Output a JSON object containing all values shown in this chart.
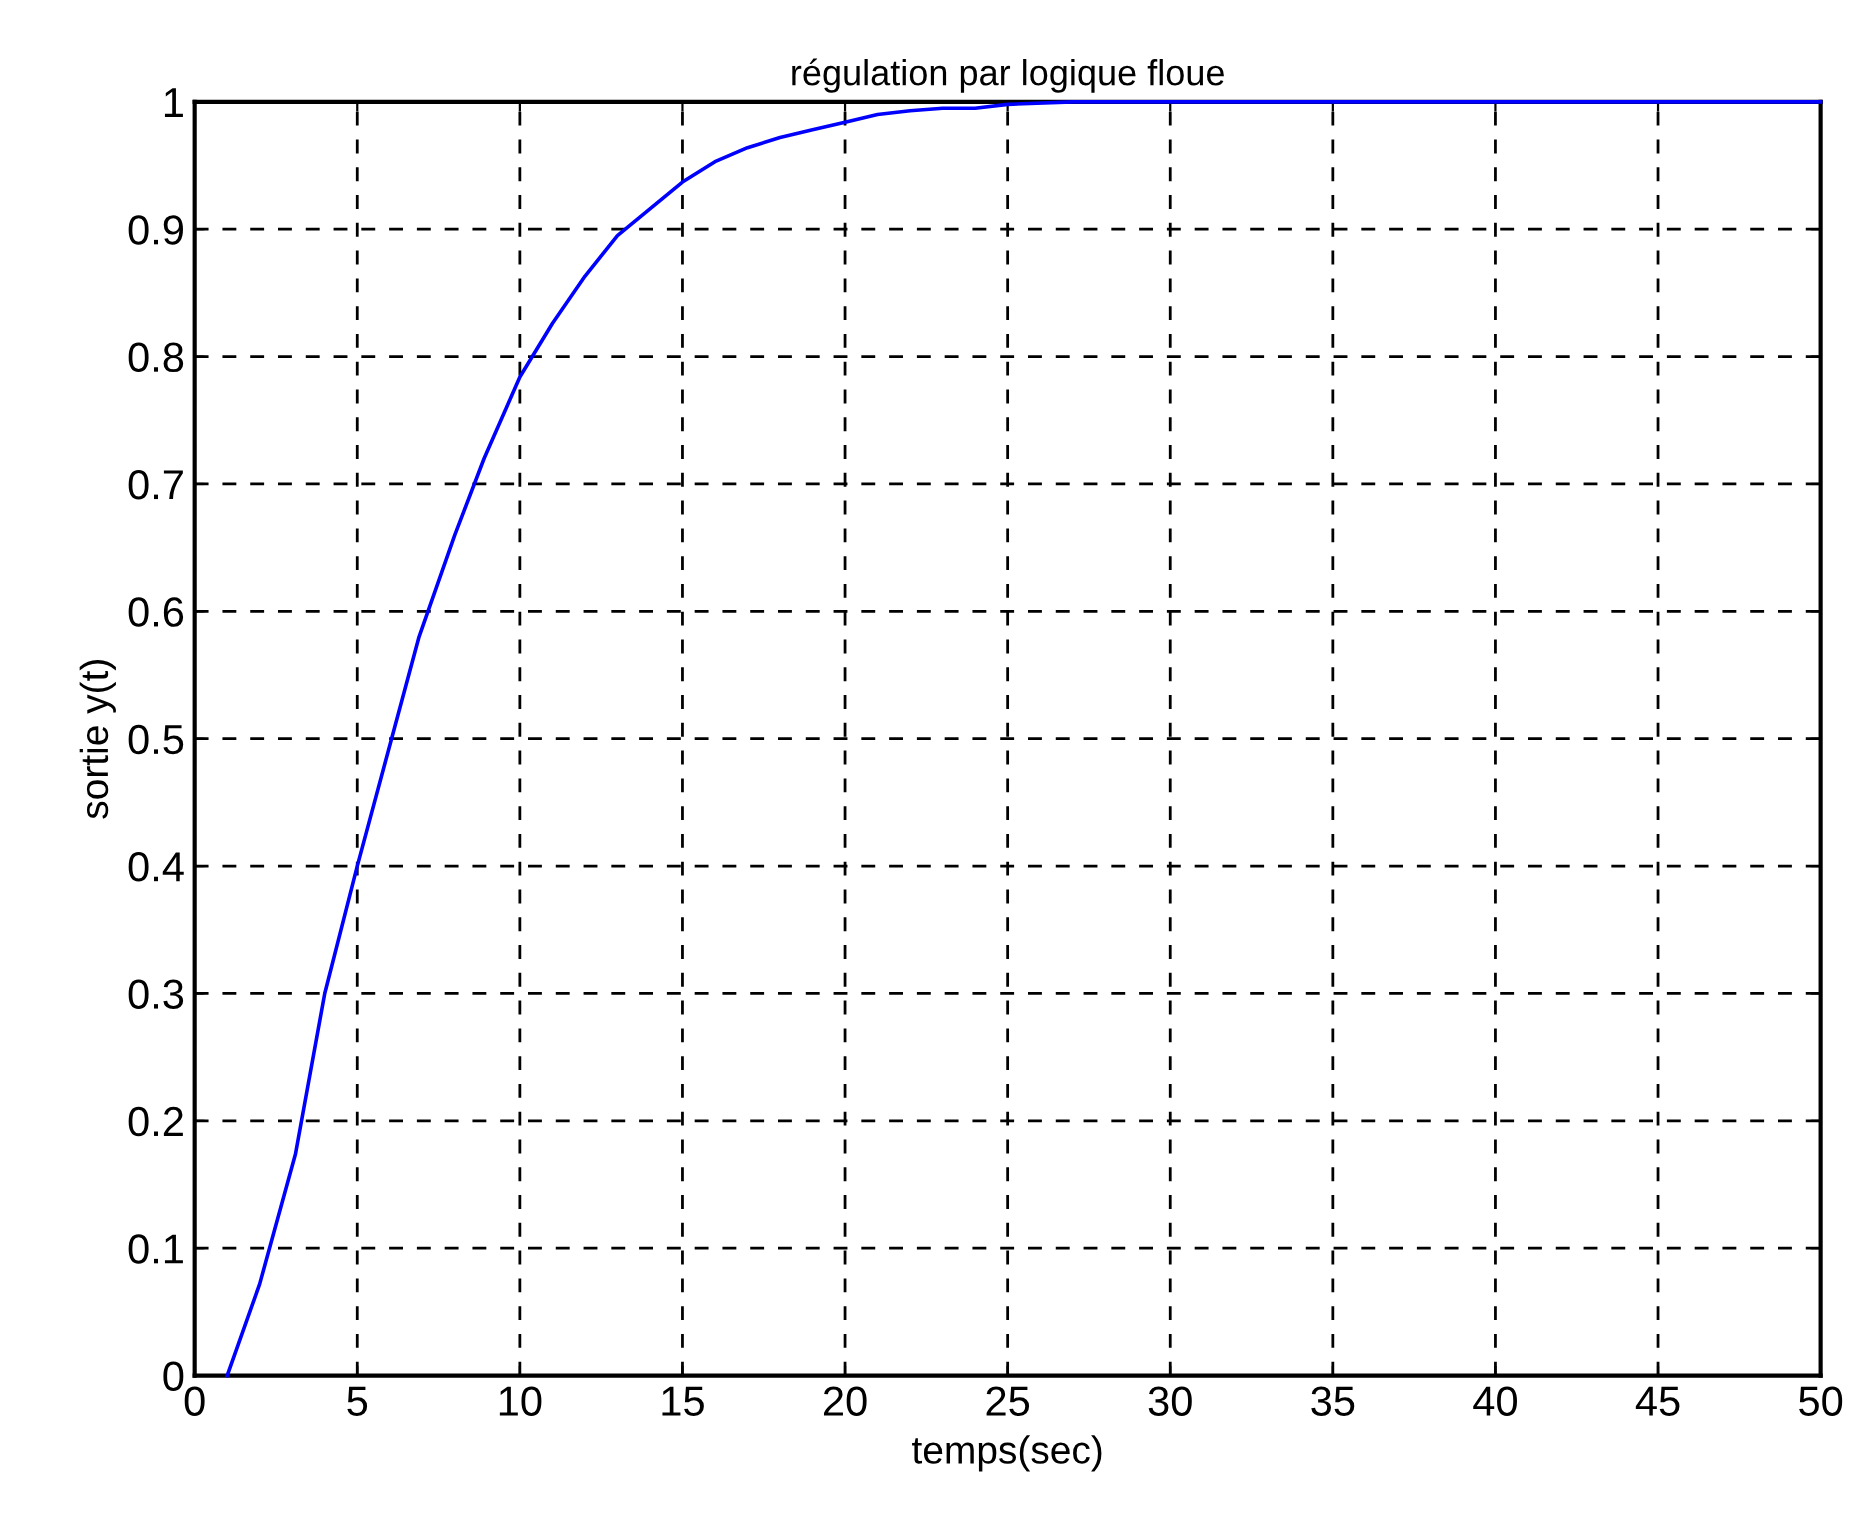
{
  "chart_data": {
    "type": "line",
    "title": "régulation par logique floue",
    "xlabel": "temps(sec)",
    "ylabel": "sortie y(t)",
    "x": [
      1,
      2,
      3.1,
      4,
      5,
      6.9,
      8,
      8.9,
      10,
      11,
      12,
      13,
      14,
      15,
      16,
      17,
      18,
      19,
      20,
      21,
      22,
      23,
      24,
      25,
      27,
      50
    ],
    "series": [
      {
        "color": "#0000ff",
        "values": [
          0,
          0.072,
          0.174,
          0.3,
          0.4,
          0.58,
          0.66,
          0.72,
          0.784,
          0.826,
          0.863,
          0.895,
          0.916,
          0.937,
          0.953,
          0.964,
          0.972,
          0.978,
          0.984,
          0.99,
          0.993,
          0.995,
          0.995,
          0.998,
          1,
          1
        ]
      }
    ],
    "xlim": [
      0,
      50
    ],
    "ylim": [
      0,
      1
    ],
    "xticks": [
      0,
      5,
      10,
      15,
      20,
      25,
      30,
      35,
      40,
      45,
      50
    ],
    "yticks": [
      0,
      0.1,
      0.2,
      0.3,
      0.4,
      0.5,
      0.6,
      0.7,
      0.8,
      0.9,
      1
    ],
    "grid": true,
    "line_style": "solid",
    "marker": "none"
  }
}
